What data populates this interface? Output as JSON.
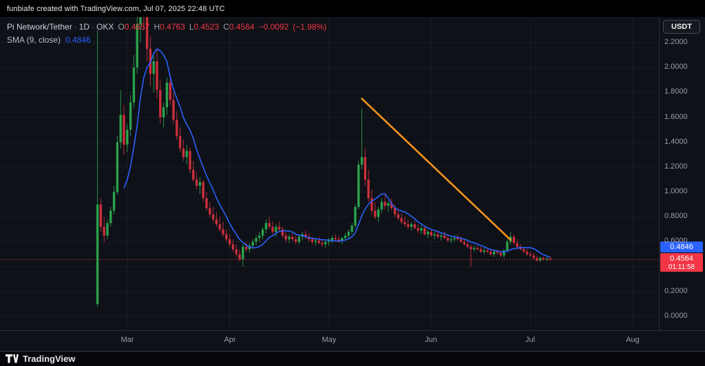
{
  "attribution": {
    "text": "funbiafe created with TradingView.com, Jul 07, 2025 22:48 UTC"
  },
  "header": {
    "symbol_title": "Pi Network/Tether",
    "interval": "1D",
    "exchange": "OKX",
    "ohlc": [
      {
        "label": "O",
        "value": "0.4657"
      },
      {
        "label": "H",
        "value": "0.4763"
      },
      {
        "label": "L",
        "value": "0.4523"
      },
      {
        "label": "C",
        "value": "0.4564"
      }
    ],
    "change": "−0.0092",
    "change_pct": "(−1.98%)",
    "indicator": {
      "name": "SMA (9, close)",
      "value": "0.4846"
    }
  },
  "currency_button": {
    "label": "USDT"
  },
  "price_axis": {
    "labels": [
      "2.2000",
      "2.0000",
      "1.8000",
      "1.6000",
      "1.4000",
      "1.2000",
      "1.0000",
      "0.8000",
      "0.6000",
      "0.2000",
      "0.0000"
    ],
    "sma_badge": "0.4846",
    "price_badge": "0.4564",
    "countdown": "01:11:58"
  },
  "footer": {
    "brand": "TradingView"
  },
  "colors": {
    "background": "#0e1117",
    "up": "#2ba24c",
    "down": "#cc2f3c",
    "sma": "#2962ff",
    "trendline": "#f7941e",
    "last_price": "#f23645",
    "grid": "rgba(170,178,197,0.07)",
    "axis_text": "#9b9fa8",
    "accent_red": "#f23645",
    "accent_blue": "#2962ff"
  },
  "chart_data": {
    "type": "candlestick",
    "pair": "PIUSDT",
    "exchange": "OKX",
    "interval": "1D",
    "start_date": "2025-02-20",
    "last_price": 0.4564,
    "y_axis": {
      "min": 0.0,
      "max": 2.4,
      "tick": 0.2
    },
    "x_months": [
      {
        "label": "Mar",
        "index": 9
      },
      {
        "label": "Apr",
        "index": 40
      },
      {
        "label": "May",
        "index": 70
      },
      {
        "label": "Jun",
        "index": 101
      },
      {
        "label": "Jul",
        "index": 131
      },
      {
        "label": "Aug",
        "index": 162
      }
    ],
    "overlays": [
      {
        "type": "sma",
        "period": 9,
        "source": "close",
        "color": "#2962ff",
        "current_value": 0.4846
      },
      {
        "type": "trendline",
        "from": {
          "index": 80,
          "price": 1.75
        },
        "to": {
          "index": 125,
          "price": 0.615
        },
        "color": "#f7941e"
      }
    ],
    "candles": [
      [
        0.1,
        2.3,
        0.08,
        0.9
      ],
      [
        0.9,
        0.95,
        0.68,
        0.72
      ],
      [
        0.72,
        0.8,
        0.6,
        0.65
      ],
      [
        0.65,
        0.78,
        0.62,
        0.75
      ],
      [
        0.75,
        0.88,
        0.72,
        0.85
      ],
      [
        0.85,
        1.05,
        0.82,
        1.0
      ],
      [
        1.0,
        1.45,
        0.98,
        1.4
      ],
      [
        1.4,
        1.82,
        1.35,
        1.62
      ],
      [
        1.62,
        1.7,
        1.3,
        1.38
      ],
      [
        1.38,
        1.55,
        1.32,
        1.5
      ],
      [
        1.5,
        1.78,
        1.45,
        1.72
      ],
      [
        1.72,
        2.1,
        1.68,
        2.0
      ],
      [
        2.0,
        2.45,
        1.95,
        2.35
      ],
      [
        2.35,
        2.98,
        2.2,
        2.85
      ],
      [
        2.85,
        2.95,
        2.3,
        2.45
      ],
      [
        2.45,
        2.6,
        2.05,
        2.15
      ],
      [
        2.15,
        2.25,
        1.85,
        1.95
      ],
      [
        1.95,
        2.1,
        1.8,
        2.05
      ],
      [
        2.05,
        2.15,
        1.75,
        1.82
      ],
      [
        1.82,
        1.9,
        1.55,
        1.6
      ],
      [
        1.6,
        1.72,
        1.52,
        1.68
      ],
      [
        1.68,
        1.92,
        1.62,
        1.88
      ],
      [
        1.88,
        1.95,
        1.7,
        1.74
      ],
      [
        1.74,
        1.8,
        1.55,
        1.58
      ],
      [
        1.58,
        1.65,
        1.42,
        1.45
      ],
      [
        1.45,
        1.52,
        1.32,
        1.35
      ],
      [
        1.35,
        1.42,
        1.25,
        1.28
      ],
      [
        1.28,
        1.38,
        1.22,
        1.33
      ],
      [
        1.33,
        1.36,
        1.15,
        1.18
      ],
      [
        1.18,
        1.25,
        1.08,
        1.1
      ],
      [
        1.1,
        1.16,
        1.02,
        1.05
      ],
      [
        1.05,
        1.12,
        0.98,
        1.08
      ],
      [
        1.08,
        1.1,
        0.92,
        0.95
      ],
      [
        0.95,
        1.0,
        0.85,
        0.87
      ],
      [
        0.87,
        0.92,
        0.8,
        0.82
      ],
      [
        0.82,
        0.88,
        0.76,
        0.78
      ],
      [
        0.78,
        0.84,
        0.72,
        0.74
      ],
      [
        0.74,
        0.8,
        0.68,
        0.7
      ],
      [
        0.7,
        0.76,
        0.64,
        0.66
      ],
      [
        0.66,
        0.7,
        0.6,
        0.62
      ],
      [
        0.62,
        0.66,
        0.56,
        0.58
      ],
      [
        0.58,
        0.62,
        0.52,
        0.54
      ],
      [
        0.54,
        0.58,
        0.48,
        0.5
      ],
      [
        0.5,
        0.54,
        0.44,
        0.46
      ],
      [
        0.46,
        0.58,
        0.4,
        0.56
      ],
      [
        0.56,
        0.6,
        0.52,
        0.54
      ],
      [
        0.54,
        0.59,
        0.51,
        0.57
      ],
      [
        0.57,
        0.62,
        0.54,
        0.6
      ],
      [
        0.6,
        0.65,
        0.57,
        0.63
      ],
      [
        0.63,
        0.68,
        0.6,
        0.65
      ],
      [
        0.65,
        0.72,
        0.62,
        0.7
      ],
      [
        0.7,
        0.78,
        0.67,
        0.75
      ],
      [
        0.75,
        0.8,
        0.7,
        0.72
      ],
      [
        0.72,
        0.76,
        0.66,
        0.68
      ],
      [
        0.68,
        0.74,
        0.64,
        0.72
      ],
      [
        0.72,
        0.76,
        0.68,
        0.7
      ],
      [
        0.7,
        0.72,
        0.63,
        0.65
      ],
      [
        0.65,
        0.68,
        0.6,
        0.62
      ],
      [
        0.62,
        0.66,
        0.59,
        0.64
      ],
      [
        0.64,
        0.67,
        0.6,
        0.62
      ],
      [
        0.62,
        0.65,
        0.58,
        0.6
      ],
      [
        0.6,
        0.66,
        0.58,
        0.64
      ],
      [
        0.64,
        0.68,
        0.61,
        0.66
      ],
      [
        0.66,
        0.69,
        0.62,
        0.64
      ],
      [
        0.64,
        0.67,
        0.6,
        0.62
      ],
      [
        0.62,
        0.64,
        0.58,
        0.6
      ],
      [
        0.6,
        0.63,
        0.57,
        0.61
      ],
      [
        0.61,
        0.64,
        0.58,
        0.59
      ],
      [
        0.59,
        0.62,
        0.56,
        0.58
      ],
      [
        0.58,
        0.61,
        0.55,
        0.6
      ],
      [
        0.6,
        0.63,
        0.57,
        0.61
      ],
      [
        0.61,
        0.65,
        0.59,
        0.63
      ],
      [
        0.63,
        0.66,
        0.6,
        0.62
      ],
      [
        0.62,
        0.65,
        0.59,
        0.61
      ],
      [
        0.61,
        0.64,
        0.58,
        0.63
      ],
      [
        0.63,
        0.67,
        0.61,
        0.65
      ],
      [
        0.65,
        0.7,
        0.63,
        0.68
      ],
      [
        0.68,
        0.75,
        0.66,
        0.73
      ],
      [
        0.73,
        0.9,
        0.71,
        0.88
      ],
      [
        0.88,
        1.25,
        0.86,
        1.22
      ],
      [
        1.22,
        1.67,
        1.18,
        1.28
      ],
      [
        1.28,
        1.35,
        1.05,
        1.1
      ],
      [
        1.1,
        1.18,
        0.92,
        0.95
      ],
      [
        0.95,
        1.02,
        0.82,
        0.85
      ],
      [
        0.85,
        0.92,
        0.78,
        0.8
      ],
      [
        0.8,
        0.88,
        0.76,
        0.86
      ],
      [
        0.86,
        0.95,
        0.83,
        0.92
      ],
      [
        0.92,
        0.98,
        0.86,
        0.89
      ],
      [
        0.89,
        0.93,
        0.84,
        0.91
      ],
      [
        0.91,
        0.95,
        0.85,
        0.87
      ],
      [
        0.87,
        0.9,
        0.8,
        0.82
      ],
      [
        0.82,
        0.86,
        0.77,
        0.79
      ],
      [
        0.79,
        0.83,
        0.74,
        0.76
      ],
      [
        0.76,
        0.8,
        0.72,
        0.74
      ],
      [
        0.74,
        0.78,
        0.7,
        0.72
      ],
      [
        0.72,
        0.76,
        0.69,
        0.74
      ],
      [
        0.74,
        0.77,
        0.7,
        0.71
      ],
      [
        0.71,
        0.74,
        0.67,
        0.69
      ],
      [
        0.69,
        0.73,
        0.66,
        0.71
      ],
      [
        0.71,
        0.73,
        0.65,
        0.66
      ],
      [
        0.66,
        0.7,
        0.63,
        0.68
      ],
      [
        0.68,
        0.7,
        0.64,
        0.65
      ],
      [
        0.65,
        0.68,
        0.62,
        0.66
      ],
      [
        0.66,
        0.69,
        0.63,
        0.64
      ],
      [
        0.64,
        0.67,
        0.61,
        0.65
      ],
      [
        0.65,
        0.68,
        0.62,
        0.63
      ],
      [
        0.63,
        0.65,
        0.6,
        0.61
      ],
      [
        0.61,
        0.64,
        0.59,
        0.62
      ],
      [
        0.62,
        0.65,
        0.6,
        0.63
      ],
      [
        0.63,
        0.66,
        0.61,
        0.62
      ],
      [
        0.62,
        0.64,
        0.59,
        0.6
      ],
      [
        0.6,
        0.62,
        0.57,
        0.58
      ],
      [
        0.58,
        0.61,
        0.55,
        0.56
      ],
      [
        0.56,
        0.58,
        0.4,
        0.54
      ],
      [
        0.54,
        0.57,
        0.52,
        0.55
      ],
      [
        0.55,
        0.57,
        0.53,
        0.54
      ],
      [
        0.54,
        0.56,
        0.51,
        0.52
      ],
      [
        0.52,
        0.55,
        0.5,
        0.53
      ],
      [
        0.53,
        0.55,
        0.51,
        0.52
      ],
      [
        0.52,
        0.54,
        0.49,
        0.5
      ],
      [
        0.5,
        0.53,
        0.48,
        0.52
      ],
      [
        0.52,
        0.54,
        0.5,
        0.51
      ],
      [
        0.51,
        0.53,
        0.48,
        0.49
      ],
      [
        0.49,
        0.54,
        0.47,
        0.53
      ],
      [
        0.53,
        0.62,
        0.52,
        0.6
      ],
      [
        0.6,
        0.68,
        0.58,
        0.64
      ],
      [
        0.64,
        0.66,
        0.58,
        0.59
      ],
      [
        0.59,
        0.62,
        0.55,
        0.56
      ],
      [
        0.56,
        0.58,
        0.53,
        0.54
      ],
      [
        0.54,
        0.56,
        0.51,
        0.52
      ],
      [
        0.52,
        0.54,
        0.49,
        0.5
      ],
      [
        0.5,
        0.52,
        0.48,
        0.49
      ],
      [
        0.49,
        0.51,
        0.46,
        0.47
      ],
      [
        0.47,
        0.49,
        0.44,
        0.45
      ],
      [
        0.45,
        0.48,
        0.44,
        0.47
      ],
      [
        0.47,
        0.48,
        0.45,
        0.46
      ],
      [
        0.46,
        0.4763,
        0.445,
        0.4656
      ],
      [
        0.4657,
        0.4763,
        0.4523,
        0.4564
      ]
    ]
  }
}
